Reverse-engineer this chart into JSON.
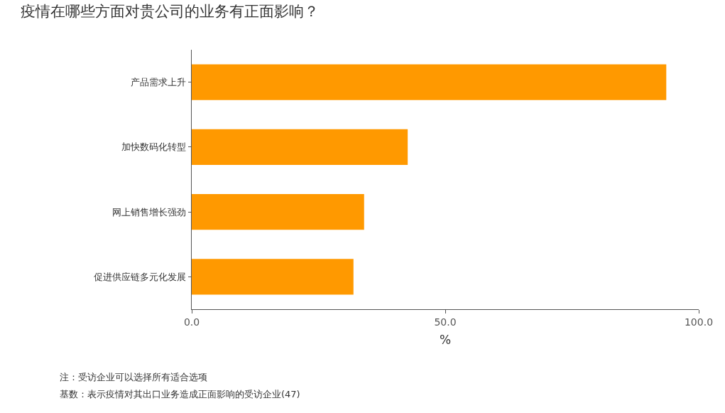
{
  "chart_data": {
    "type": "bar",
    "orientation": "horizontal",
    "title": "疫情在哪些方面对贵公司的业务有正面影响？",
    "xlabel": "%",
    "categories": [
      "产品需求上升",
      "加快数码化转型",
      "网上销售增长强劲",
      "促进供应链多元化发展"
    ],
    "values": [
      93.6,
      42.6,
      34.0,
      31.9
    ],
    "color": "#ff9900",
    "xlim": [
      0,
      100
    ],
    "xticks": [
      {
        "value": 0,
        "label": "0.0"
      },
      {
        "value": 50,
        "label": "50.0"
      },
      {
        "value": 100,
        "label": "100.0"
      }
    ],
    "grid": false,
    "annotations": [
      "注：受访企业可以选择所有适合选项",
      "基数：表示疫情对其出口业务造成正面影响的受访企业(47)"
    ]
  }
}
